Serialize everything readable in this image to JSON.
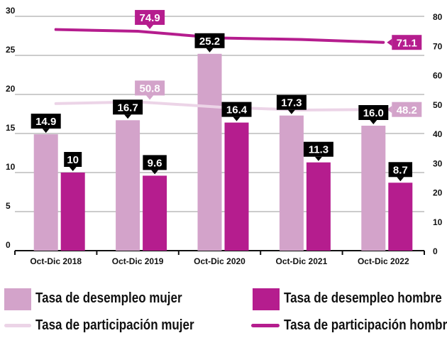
{
  "chart_data": {
    "type": "bar",
    "categories": [
      "Oct-Dic 2018",
      "Oct-Dic 2019",
      "Oct-Dic 2020",
      "Oct-Dic 2021",
      "Oct-Dic 2022"
    ],
    "left_axis": {
      "ylim": [
        0,
        30
      ],
      "ticks": [
        "0",
        "5",
        "10",
        "15",
        "20",
        "25",
        "30"
      ]
    },
    "right_axis": {
      "ylim": [
        0,
        80
      ],
      "ticks": [
        "0",
        "10",
        "20",
        "30",
        "40",
        "50",
        "60",
        "70",
        "80"
      ]
    },
    "grid": true,
    "legend_placement": "bottom",
    "series": [
      {
        "name": "Tasa de desempleo mujer",
        "type": "bar",
        "axis": "left",
        "color": "#d3a3ca",
        "values": [
          14.9,
          16.7,
          25.2,
          17.3,
          16.0
        ],
        "labels": [
          "14.9",
          "16.7",
          "25.2",
          "17.3",
          "16.0"
        ]
      },
      {
        "name": "Tasa de desempleo hombre",
        "type": "bar",
        "axis": "left",
        "color": "#b51d8e",
        "values": [
          10,
          9.6,
          16.4,
          11.3,
          8.7
        ],
        "labels": [
          "10",
          "9.6",
          "16.4",
          "11.3",
          "8.7"
        ]
      },
      {
        "name": "Tasa de participación mujer",
        "type": "line",
        "axis": "right",
        "color": "#ecd4e7",
        "values": [
          50.2,
          50.8,
          49.0,
          48.0,
          48.2
        ],
        "point_labels": {
          "1": "50.8",
          "4": "48.2"
        }
      },
      {
        "name": "Tasa de participación hombre",
        "type": "line",
        "axis": "right",
        "color": "#b51d8e",
        "values": [
          75.5,
          74.9,
          72.6,
          72.1,
          71.1
        ],
        "point_labels": {
          "1": "74.9",
          "4": "71.1"
        }
      }
    ]
  }
}
